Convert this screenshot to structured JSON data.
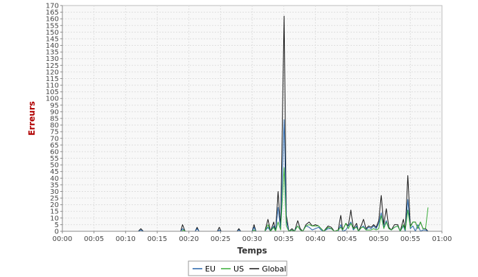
{
  "chart_data": {
    "type": "line",
    "title": "",
    "xlabel": "Temps",
    "ylabel": "Erreurs",
    "xlim": [
      0,
      60
    ],
    "ylim": [
      0,
      170
    ],
    "xtick_labels": [
      "00:00",
      "00:05",
      "00:10",
      "00:15",
      "00:20",
      "00:25",
      "00:30",
      "00:35",
      "00:40",
      "00:45",
      "00:50",
      "00:55",
      "01:00"
    ],
    "ytick_labels": [
      "0",
      "5",
      "10",
      "15",
      "20",
      "25",
      "30",
      "35",
      "40",
      "45",
      "50",
      "55",
      "60",
      "65",
      "70",
      "75",
      "80",
      "85",
      "90",
      "95",
      "100",
      "105",
      "110",
      "115",
      "120",
      "125",
      "130",
      "135",
      "140",
      "145",
      "150",
      "155",
      "160",
      "165",
      "170"
    ],
    "grid": true,
    "legend_position": "bottom",
    "series": [
      {
        "name": "EU",
        "color": "#1f5fa8",
        "points": [
          [
            2.8,
            0
          ],
          [
            12,
            0
          ],
          [
            12.4,
            1
          ],
          [
            12.8,
            0
          ],
          [
            18.7,
            0
          ],
          [
            19,
            2
          ],
          [
            19.4,
            0
          ],
          [
            21,
            0
          ],
          [
            21.3,
            2
          ],
          [
            21.6,
            0
          ],
          [
            24.5,
            0
          ],
          [
            24.8,
            1
          ],
          [
            25.1,
            0
          ],
          [
            27.6,
            0
          ],
          [
            27.9,
            1
          ],
          [
            28.2,
            0
          ],
          [
            30,
            0
          ],
          [
            30.3,
            3
          ],
          [
            30.6,
            0
          ],
          [
            32,
            0
          ],
          [
            32.5,
            3
          ],
          [
            32.9,
            0
          ],
          [
            33.4,
            4
          ],
          [
            33.7,
            0
          ],
          [
            34.1,
            18
          ],
          [
            34.5,
            2
          ],
          [
            35.05,
            84
          ],
          [
            35.4,
            8
          ],
          [
            35.8,
            0
          ],
          [
            36.2,
            1
          ],
          [
            36.6,
            0
          ],
          [
            37.2,
            4
          ],
          [
            37.6,
            1
          ],
          [
            38,
            0
          ],
          [
            38.5,
            4
          ],
          [
            39,
            3
          ],
          [
            39.5,
            1
          ],
          [
            40,
            2
          ],
          [
            40.5,
            3
          ],
          [
            40.9,
            1
          ],
          [
            41.3,
            0
          ],
          [
            42,
            2
          ],
          [
            42.5,
            2
          ],
          [
            43,
            0
          ],
          [
            43.6,
            0
          ],
          [
            44,
            5
          ],
          [
            44.3,
            0
          ],
          [
            44.8,
            1
          ],
          [
            45.2,
            4
          ],
          [
            45.6,
            7
          ],
          [
            46,
            1
          ],
          [
            46.5,
            4
          ],
          [
            46.8,
            0
          ],
          [
            47.3,
            3
          ],
          [
            47.6,
            4
          ],
          [
            48,
            1
          ],
          [
            48.4,
            3
          ],
          [
            48.8,
            2
          ],
          [
            49.2,
            4
          ],
          [
            49.6,
            2
          ],
          [
            50,
            6
          ],
          [
            50.4,
            14
          ],
          [
            50.8,
            3
          ],
          [
            51.2,
            8
          ],
          [
            51.6,
            2
          ],
          [
            52,
            1
          ],
          [
            52.5,
            3
          ],
          [
            53,
            4
          ],
          [
            53.4,
            0
          ],
          [
            53.9,
            4
          ],
          [
            54.2,
            0
          ],
          [
            54.6,
            24
          ],
          [
            55,
            2
          ],
          [
            55.4,
            4
          ],
          [
            55.8,
            0
          ],
          [
            56.2,
            5
          ],
          [
            56.6,
            0
          ],
          [
            57,
            1
          ],
          [
            57.4,
            1
          ],
          [
            57.8,
            0
          ]
        ]
      },
      {
        "name": "US",
        "color": "#33aa33",
        "points": [
          [
            2.8,
            0
          ],
          [
            18.9,
            0
          ],
          [
            19.1,
            1
          ],
          [
            19.5,
            0
          ],
          [
            30,
            0
          ],
          [
            30.3,
            1
          ],
          [
            30.6,
            0
          ],
          [
            32,
            0
          ],
          [
            32.5,
            5
          ],
          [
            32.9,
            0
          ],
          [
            33.4,
            3
          ],
          [
            33.7,
            0
          ],
          [
            34.1,
            7
          ],
          [
            34.5,
            1
          ],
          [
            35.05,
            48
          ],
          [
            35.4,
            4
          ],
          [
            35.8,
            0
          ],
          [
            36.3,
            1
          ],
          [
            36.7,
            0
          ],
          [
            37.2,
            4
          ],
          [
            37.6,
            1
          ],
          [
            38,
            0
          ],
          [
            38.5,
            4
          ],
          [
            39,
            5
          ],
          [
            39.5,
            4
          ],
          [
            40,
            4
          ],
          [
            40.5,
            4
          ],
          [
            40.9,
            2
          ],
          [
            41.3,
            0
          ],
          [
            42,
            3
          ],
          [
            42.5,
            2
          ],
          [
            43,
            0
          ],
          [
            43.6,
            1
          ],
          [
            44,
            3
          ],
          [
            44.3,
            1
          ],
          [
            44.8,
            6
          ],
          [
            45.2,
            2
          ],
          [
            45.6,
            6
          ],
          [
            46,
            2
          ],
          [
            46.5,
            3
          ],
          [
            46.8,
            0
          ],
          [
            47.3,
            3
          ],
          [
            47.6,
            3
          ],
          [
            48,
            1
          ],
          [
            48.4,
            1
          ],
          [
            48.8,
            1
          ],
          [
            49.2,
            2
          ],
          [
            49.6,
            1
          ],
          [
            50,
            2
          ],
          [
            50.4,
            12
          ],
          [
            50.8,
            2
          ],
          [
            51.2,
            7
          ],
          [
            51.6,
            2
          ],
          [
            52,
            1
          ],
          [
            52.5,
            3
          ],
          [
            53,
            4
          ],
          [
            53.4,
            0
          ],
          [
            53.9,
            5
          ],
          [
            54.2,
            1
          ],
          [
            54.6,
            16
          ],
          [
            55,
            3
          ],
          [
            55.4,
            7
          ],
          [
            55.8,
            7
          ],
          [
            56.2,
            2
          ],
          [
            56.6,
            7
          ],
          [
            57,
            2
          ],
          [
            57.4,
            2
          ],
          [
            57.8,
            18
          ]
        ]
      },
      {
        "name": "Global",
        "color": "#111111",
        "points": [
          [
            2.8,
            0
          ],
          [
            12,
            0
          ],
          [
            12.4,
            2
          ],
          [
            12.8,
            0
          ],
          [
            18.7,
            0
          ],
          [
            19,
            5
          ],
          [
            19.4,
            0
          ],
          [
            21,
            0
          ],
          [
            21.3,
            3
          ],
          [
            21.6,
            0
          ],
          [
            24.5,
            0
          ],
          [
            24.8,
            3
          ],
          [
            25.1,
            0
          ],
          [
            27.6,
            0
          ],
          [
            27.9,
            2
          ],
          [
            28.2,
            0
          ],
          [
            30,
            0
          ],
          [
            30.3,
            5
          ],
          [
            30.6,
            0
          ],
          [
            32,
            0
          ],
          [
            32.5,
            9
          ],
          [
            32.9,
            0
          ],
          [
            33.4,
            7
          ],
          [
            33.7,
            0
          ],
          [
            34.1,
            30
          ],
          [
            34.5,
            3
          ],
          [
            35.05,
            162
          ],
          [
            35.4,
            12
          ],
          [
            35.8,
            0
          ],
          [
            36.3,
            2
          ],
          [
            36.7,
            0
          ],
          [
            37.2,
            8
          ],
          [
            37.6,
            2
          ],
          [
            38,
            0
          ],
          [
            38.5,
            5
          ],
          [
            39,
            7
          ],
          [
            39.5,
            4
          ],
          [
            40,
            5
          ],
          [
            40.5,
            4
          ],
          [
            40.9,
            2
          ],
          [
            41.3,
            0
          ],
          [
            42,
            4
          ],
          [
            42.5,
            3
          ],
          [
            43,
            0
          ],
          [
            43.6,
            1
          ],
          [
            44,
            12
          ],
          [
            44.3,
            1
          ],
          [
            44.8,
            6
          ],
          [
            45.2,
            4
          ],
          [
            45.6,
            16
          ],
          [
            46,
            2
          ],
          [
            46.5,
            6
          ],
          [
            46.8,
            0
          ],
          [
            47.3,
            5
          ],
          [
            47.6,
            9
          ],
          [
            48,
            2
          ],
          [
            48.4,
            4
          ],
          [
            48.8,
            3
          ],
          [
            49.2,
            5
          ],
          [
            49.6,
            3
          ],
          [
            50,
            8
          ],
          [
            50.4,
            27
          ],
          [
            50.8,
            5
          ],
          [
            51.2,
            17
          ],
          [
            51.6,
            3
          ],
          [
            52,
            1
          ],
          [
            52.5,
            5
          ],
          [
            53,
            5
          ],
          [
            53.4,
            0
          ],
          [
            53.9,
            9
          ],
          [
            54.2,
            1
          ],
          [
            54.6,
            42
          ],
          [
            55,
            4
          ],
          [
            55.4,
            7
          ],
          [
            55.8,
            7
          ],
          [
            56.2,
            2
          ],
          [
            56.6,
            7
          ],
          [
            57,
            2
          ],
          [
            57.4,
            2
          ],
          [
            57.8,
            0
          ]
        ]
      }
    ]
  }
}
